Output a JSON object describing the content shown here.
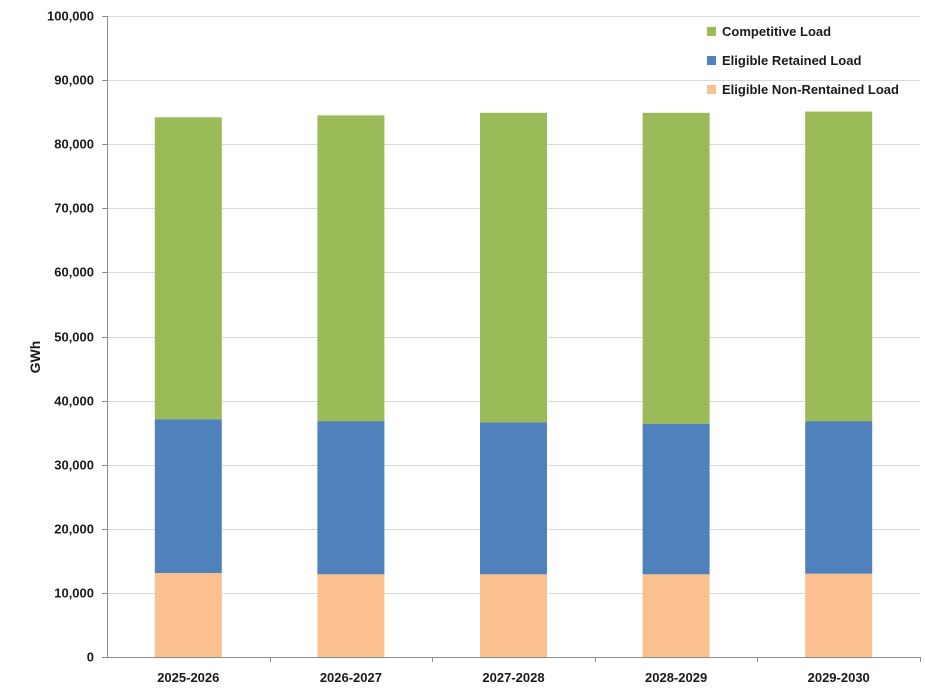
{
  "chart_data": {
    "type": "bar",
    "stacked": true,
    "categories": [
      "2025-2026",
      "2026-2027",
      "2027-2028",
      "2028-2029",
      "2029-2030"
    ],
    "series": [
      {
        "name": "Eligible Non-Rentained Load",
        "color": "#fac090",
        "values": [
          13100,
          12900,
          12900,
          12900,
          13000
        ]
      },
      {
        "name": "Eligible Retained Load",
        "color": "#4f81bd",
        "values": [
          24000,
          23900,
          23700,
          23500,
          23800
        ]
      },
      {
        "name": "Competitive Load",
        "color": "#9bbb59",
        "values": [
          47100,
          47700,
          48300,
          48500,
          48300
        ]
      }
    ],
    "legend_order": [
      "Competitive Load",
      "Eligible Retained Load",
      "Eligible Non-Rentained Load"
    ],
    "title": "",
    "xlabel": "",
    "ylabel": "GWh",
    "ylim": [
      0,
      100000
    ],
    "yticks": [
      0,
      10000,
      20000,
      30000,
      40000,
      50000,
      60000,
      70000,
      80000,
      90000,
      100000
    ],
    "ytick_labels": [
      "0",
      "10,000",
      "20,000",
      "30,000",
      "40,000",
      "50,000",
      "60,000",
      "70,000",
      "80,000",
      "90,000",
      "100,000"
    ],
    "grid": true,
    "legend_position": "top-right"
  }
}
